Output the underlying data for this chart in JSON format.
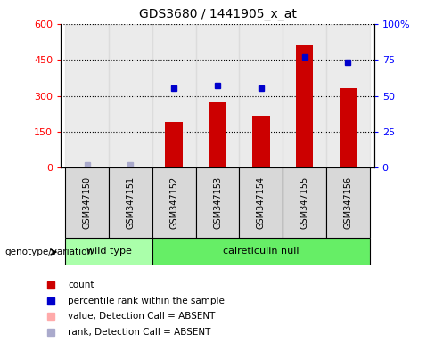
{
  "title": "GDS3680 / 1441905_x_at",
  "samples": [
    "GSM347150",
    "GSM347151",
    "GSM347152",
    "GSM347153",
    "GSM347154",
    "GSM347155",
    "GSM347156"
  ],
  "count_values": [
    2,
    2,
    192,
    272,
    215,
    512,
    330
  ],
  "percentile_values": [
    2,
    2,
    55,
    57,
    55,
    77,
    73
  ],
  "bar_color": "#cc0000",
  "dot_color": "#0000cc",
  "absent_bar_color": "#ffaaaa",
  "absent_dot_color": "#aaaacc",
  "left_ylim": [
    0,
    600
  ],
  "right_ylim": [
    0,
    100
  ],
  "left_yticks": [
    0,
    150,
    300,
    450,
    600
  ],
  "right_yticks": [
    0,
    25,
    50,
    75,
    100
  ],
  "right_yticklabels": [
    "0",
    "25",
    "50",
    "75",
    "100%"
  ],
  "wt_color": "#aaffaa",
  "cn_color": "#66ee66",
  "legend_items": [
    {
      "label": "count",
      "color": "#cc0000"
    },
    {
      "label": "percentile rank within the sample",
      "color": "#0000cc"
    },
    {
      "label": "value, Detection Call = ABSENT",
      "color": "#ffaaaa"
    },
    {
      "label": "rank, Detection Call = ABSENT",
      "color": "#aaaacc"
    }
  ]
}
